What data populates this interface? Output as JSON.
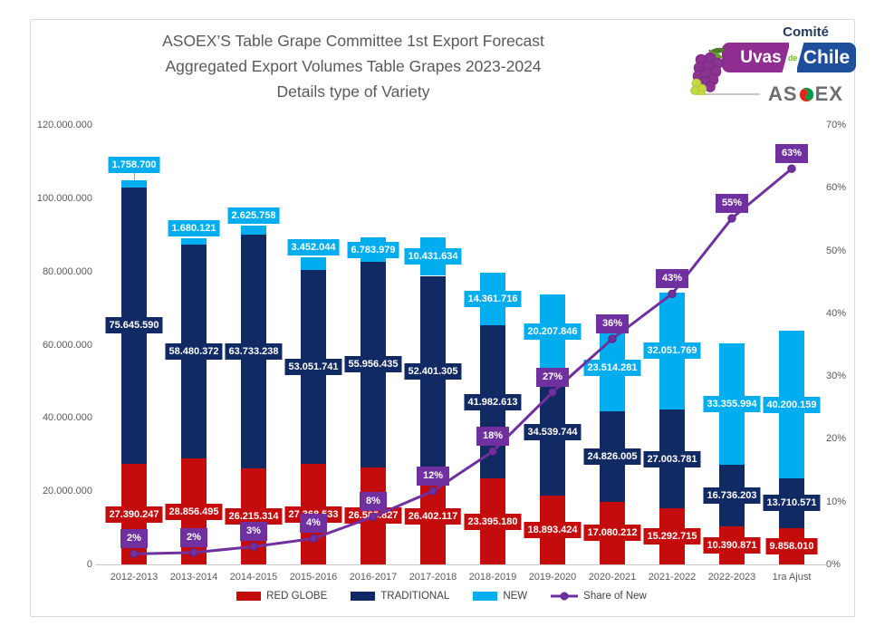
{
  "chart_data": {
    "type": "bar",
    "subtype": "stacked-column-with-percentage-line",
    "title": "ASOEX’S Table Grape Committee 1st Export Forecast",
    "subtitle": "Aggregated Export Volumes Table Grapes 2023-2024",
    "subtitle2": "Details type of Variety",
    "categories": [
      "2012-2013",
      "2013-2014",
      "2014-2015",
      "2015-2016",
      "2016-2017",
      "2017-2018",
      "2018-2019",
      "2019-2020",
      "2020-2021",
      "2021-2022",
      "2022-2023",
      "1ra Ajust"
    ],
    "series": [
      {
        "name": "RED GLOBE",
        "color": "#C50C0C",
        "values": [
          27390247,
          28856495,
          26215314,
          27368533,
          26585827,
          26402117,
          23395180,
          18893424,
          17080212,
          15292715,
          10390871,
          9858010
        ],
        "labels": [
          "27.390.247",
          "28.856.495",
          "26.215.314",
          "27.368.533",
          "26.585.827",
          "26.402.117",
          "23.395.180",
          "18.893.424",
          "17.080.212",
          "15.292.715",
          "10.390.871",
          "9.858.010"
        ]
      },
      {
        "name": "TRADITIONAL",
        "color": "#122A63",
        "values": [
          75645590,
          58480372,
          63733238,
          53051741,
          55956435,
          52401305,
          41982613,
          34539744,
          24826005,
          27003781,
          16736203,
          13710571
        ],
        "labels": [
          "75.645.590",
          "58.480.372",
          "63.733.238",
          "53.051.741",
          "55.956.435",
          "52.401.305",
          "41.982.613",
          "34.539.744",
          "24.826.005",
          "27.003.781",
          "16.736.203",
          "13.710.571"
        ]
      },
      {
        "name": "NEW",
        "color": "#00AEEF",
        "values": [
          1758700,
          1680121,
          2625758,
          3452044,
          6783979,
          10431634,
          14361716,
          20207846,
          23514281,
          32051769,
          33355994,
          40200159
        ],
        "labels": [
          "1.758.700",
          "1.680.121",
          "2.625.758",
          "3.452.044",
          "6.783.979",
          "10.431.634",
          "14.361.716",
          "20.207.846",
          "23.514.281",
          "32.051.769",
          "33.355.994",
          "40.200.159"
        ]
      }
    ],
    "line_series": {
      "name": "Share of New",
      "color": "#7030A0",
      "marker_stroke": "#5A2180",
      "axis": "right",
      "values_pct": [
        1.68,
        1.89,
        2.84,
        4.12,
        7.59,
        11.69,
        18.01,
        27.44,
        35.94,
        43.11,
        55.15,
        63.04
      ],
      "labels": [
        "2%",
        "2%",
        "3%",
        "4%",
        "8%",
        "12%",
        "18%",
        "27%",
        "36%",
        "43%",
        "55%",
        "63%"
      ]
    },
    "left_axis": {
      "min": 0,
      "max": 120000000,
      "tick_step": 20000000,
      "ticks": [
        "0",
        "20.000.000",
        "40.000.000",
        "60.000.000",
        "80.000.000",
        "100.000.000",
        "120.000.000"
      ]
    },
    "right_axis": {
      "min": 0,
      "max": 70,
      "tick_step": 10,
      "ticks": [
        "0%",
        "10%",
        "20%",
        "30%",
        "40%",
        "50%",
        "60%",
        "70%"
      ]
    },
    "legend": {
      "position": "bottom",
      "items": [
        "RED GLOBE",
        "TRADITIONAL",
        "NEW",
        "Share of New"
      ]
    },
    "grid": false
  },
  "logo": {
    "comite": "Comité",
    "uvas": "Uvas",
    "de": "de",
    "chile": "Chile",
    "asoex_as": "AS",
    "asoex_ex": "EX",
    "colors": {
      "purple": "#8F2D90",
      "blue": "#1D4F9C",
      "green": "#76B82A",
      "navy": "#24385C",
      "gray": "#6D6E71",
      "swirl_red": "#E1251B",
      "swirl_green": "#009845"
    }
  }
}
